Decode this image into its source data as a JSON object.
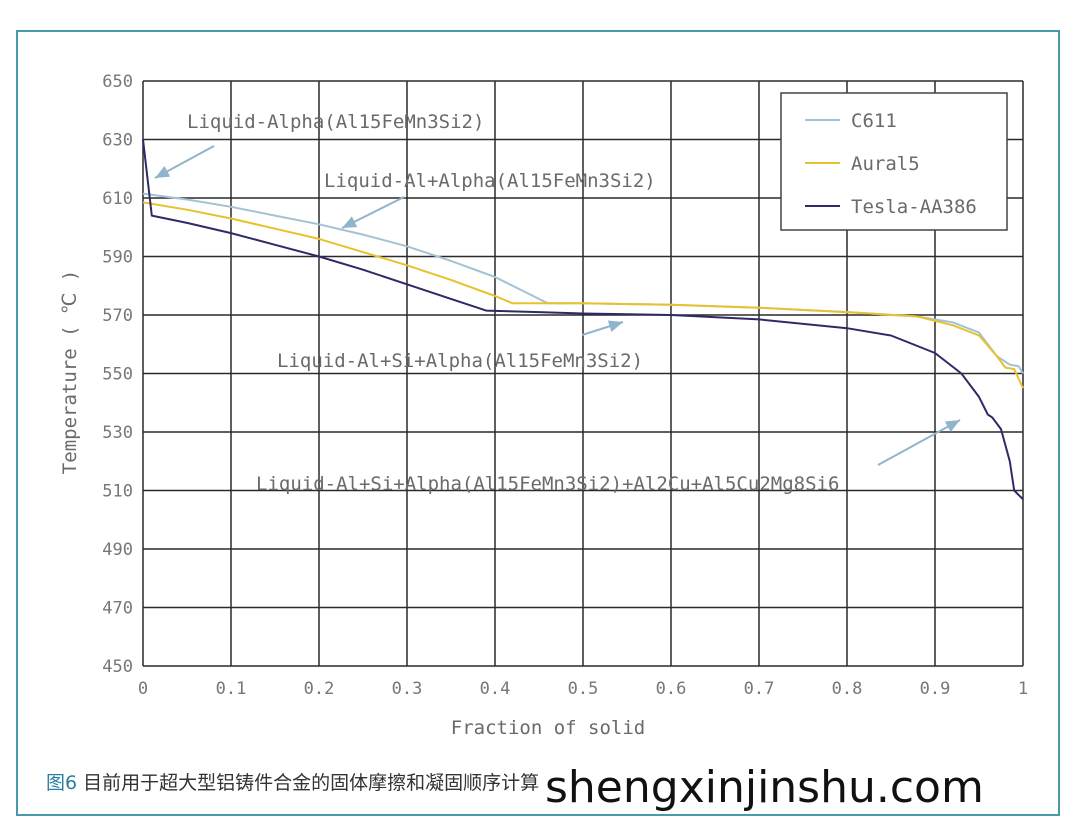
{
  "caption": {
    "figure_label": "图6",
    "text": "目前用于超大型铝铸件合金的固体摩擦和凝固顺序计算"
  },
  "watermark": "shengxinjinshu.com",
  "colors": {
    "C611": "#a4c2d6",
    "Aural5": "#e8c22c",
    "Tesla-AA386": "#2f2a66",
    "grid": "#2a2a2a",
    "arrow": "#8fb4cc",
    "frame": "#4a98a8"
  },
  "chart_data": {
    "type": "line",
    "title": "",
    "xlabel": "Fraction of solid",
    "ylabel": "Temperature ( ℃ )",
    "xlim": [
      0,
      1
    ],
    "ylim": [
      450,
      650
    ],
    "xticks": [
      "0",
      "0.1",
      "0.2",
      "0.3",
      "0.4",
      "0.5",
      "0.6",
      "0.7",
      "0.8",
      "0.9",
      "1"
    ],
    "yticks": [
      "650",
      "630",
      "610",
      "590",
      "570",
      "550",
      "530",
      "510",
      "490",
      "470",
      "450"
    ],
    "grid": true,
    "legend_position": "top-right",
    "series": [
      {
        "name": "C611",
        "x": [
          0,
          0.05,
          0.1,
          0.15,
          0.2,
          0.25,
          0.3,
          0.35,
          0.4,
          0.44,
          0.46,
          0.5,
          0.6,
          0.7,
          0.8,
          0.88,
          0.92,
          0.95,
          0.97,
          0.985,
          0.995,
          1
        ],
        "y": [
          611.5,
          609.5,
          607,
          604,
          601,
          597.5,
          593.5,
          588.5,
          583,
          577,
          574,
          574,
          573.5,
          572.5,
          571,
          569.5,
          567.5,
          564,
          556,
          553,
          552.5,
          550
        ]
      },
      {
        "name": "Aural5",
        "x": [
          0,
          0.05,
          0.1,
          0.15,
          0.2,
          0.25,
          0.3,
          0.35,
          0.4,
          0.42,
          0.5,
          0.6,
          0.7,
          0.8,
          0.88,
          0.92,
          0.95,
          0.97,
          0.98,
          0.99,
          1
        ],
        "y": [
          608.5,
          606,
          603,
          599.5,
          596,
          591.5,
          587,
          582,
          576.5,
          574,
          574,
          573.5,
          572.5,
          571,
          569.5,
          566.5,
          563,
          556,
          552,
          551.5,
          545
        ]
      },
      {
        "name": "Tesla-AA386",
        "x": [
          0,
          0.01,
          0.05,
          0.1,
          0.15,
          0.2,
          0.25,
          0.3,
          0.35,
          0.39,
          0.45,
          0.5,
          0.6,
          0.7,
          0.8,
          0.85,
          0.9,
          0.93,
          0.95,
          0.96,
          0.965,
          0.975,
          0.985,
          0.99,
          1
        ],
        "y": [
          630,
          604,
          601.5,
          598,
          594,
          590,
          585.5,
          580.5,
          575.5,
          571.5,
          571,
          570.5,
          570,
          568.5,
          565.5,
          563,
          557,
          550,
          542,
          536,
          535,
          531,
          520,
          510,
          507
        ]
      }
    ],
    "annotations": [
      {
        "text": "Liquid-Alpha(Al15FeMn3Si2)"
      },
      {
        "text": "Liquid-Al+Alpha(Al15FeMn3Si2)"
      },
      {
        "text": "Liquid-Al+Si+Alpha(Al15FeMn3Si2)"
      },
      {
        "text": "Liquid-Al+Si+Alpha(Al15FeMn3Si2)+Al2Cu+Al5Cu2Mg8Si6"
      }
    ]
  }
}
